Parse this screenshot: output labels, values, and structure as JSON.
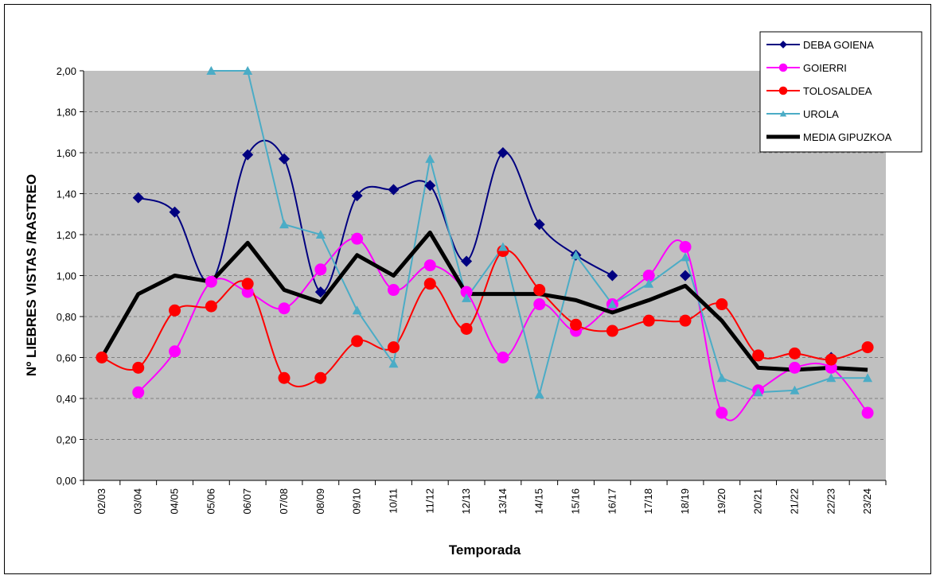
{
  "chart_data": {
    "type": "line",
    "y_label": "Nº LIEBRES VISTAS /RASTREO",
    "x_label": "Temporada",
    "categories": [
      "02/03",
      "03/04",
      "04/05",
      "05/06",
      "06/07",
      "07/08",
      "08/09",
      "09/10",
      "10/11",
      "11/12",
      "12/13",
      "13/14",
      "14/15",
      "15/16",
      "16/17",
      "17/18",
      "18/19",
      "19/20",
      "20/21",
      "21/22",
      "22/23",
      "23/24"
    ],
    "ylim": [
      0,
      2
    ],
    "yticks": [
      {
        "value": 0,
        "label": "0,00"
      },
      {
        "value": 0.2,
        "label": "0,20"
      },
      {
        "value": 0.4,
        "label": "0,40"
      },
      {
        "value": 0.6,
        "label": "0,60"
      },
      {
        "value": 0.8,
        "label": "0,80"
      },
      {
        "value": 1,
        "label": "1,00"
      },
      {
        "value": 1.2,
        "label": "1,20"
      },
      {
        "value": 1.4,
        "label": "1,40"
      },
      {
        "value": 1.6,
        "label": "1,60"
      },
      {
        "value": 1.8,
        "label": "1,80"
      },
      {
        "value": 2,
        "label": "2,00"
      }
    ],
    "grid": true,
    "legend": "top-right",
    "series": [
      {
        "name": "DEBA GOIENA",
        "color": "#000080",
        "marker": "diamond",
        "smooth": true,
        "values": [
          null,
          1.38,
          1.31,
          0.97,
          1.59,
          1.57,
          0.92,
          1.39,
          1.42,
          1.44,
          1.07,
          1.6,
          1.25,
          1.1,
          1.0,
          null,
          1.0,
          null,
          null,
          null,
          0.6,
          null
        ]
      },
      {
        "name": "GOIERRI",
        "color": "#ff00ff",
        "marker": "circle",
        "smooth": true,
        "values": [
          null,
          0.43,
          0.63,
          0.97,
          0.92,
          0.84,
          1.03,
          1.18,
          0.93,
          1.05,
          0.92,
          0.6,
          0.86,
          0.73,
          0.86,
          1.0,
          1.14,
          0.33,
          0.44,
          0.55,
          0.55,
          0.33
        ]
      },
      {
        "name": "TOLOSALDEA",
        "color": "#ff0000",
        "marker": "circle",
        "smooth": true,
        "values": [
          0.6,
          0.55,
          0.83,
          0.85,
          0.96,
          0.5,
          0.5,
          0.68,
          0.65,
          0.96,
          0.74,
          1.12,
          0.93,
          0.76,
          0.73,
          0.78,
          0.78,
          0.86,
          0.61,
          0.62,
          0.59,
          0.65
        ]
      },
      {
        "name": "UROLA",
        "color": "#4bacc6",
        "marker": "triangle",
        "smooth": false,
        "values": [
          null,
          null,
          null,
          2.0,
          2.0,
          1.25,
          1.2,
          0.83,
          0.57,
          1.57,
          0.89,
          1.14,
          0.42,
          1.1,
          0.86,
          0.96,
          1.09,
          0.5,
          0.43,
          0.44,
          0.5,
          0.5
        ]
      },
      {
        "name": "MEDIA GIPUZKOA",
        "color": "#000000",
        "marker": "none",
        "smooth": false,
        "values": [
          0.6,
          0.91,
          1.0,
          0.97,
          1.16,
          0.93,
          0.87,
          1.1,
          1.0,
          1.21,
          0.91,
          0.91,
          0.91,
          0.88,
          0.82,
          0.88,
          0.95,
          0.78,
          0.55,
          0.54,
          0.55,
          0.54
        ]
      }
    ]
  }
}
